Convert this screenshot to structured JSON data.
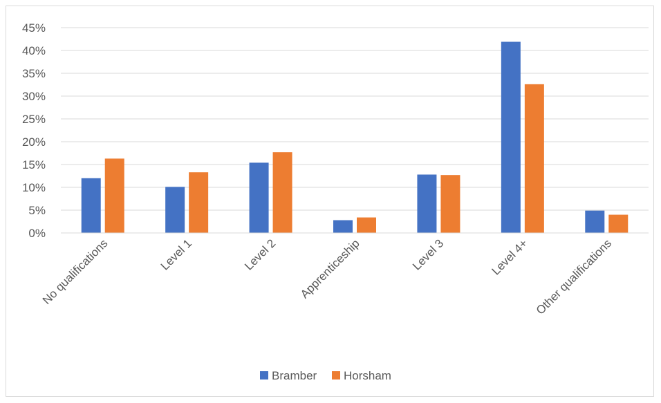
{
  "chart_data": {
    "type": "bar",
    "title": "",
    "xlabel": "",
    "ylabel": "",
    "categories": [
      "No qualifications",
      "Level 1",
      "Level 2",
      "Apprenticeship",
      "Level 3",
      "Level 4+",
      "Other qualifications"
    ],
    "series": [
      {
        "name": "Bramber",
        "color": "#4472c4",
        "values": [
          12.0,
          10.1,
          15.4,
          2.8,
          12.8,
          41.9,
          4.9
        ]
      },
      {
        "name": "Horsham",
        "color": "#ed7d31",
        "values": [
          16.3,
          13.3,
          17.7,
          3.4,
          12.7,
          32.6,
          4.0
        ]
      }
    ],
    "ylim": [
      0,
      45
    ],
    "ytick_step": 5,
    "ytick_format": "percent",
    "grid": true,
    "legend_position": "bottom"
  }
}
